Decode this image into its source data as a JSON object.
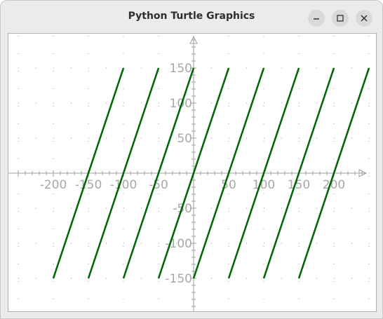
{
  "window": {
    "title": "Python Turtle Graphics",
    "buttons": [
      "minimize",
      "maximize",
      "close"
    ]
  },
  "colors": {
    "line": "#006400",
    "axis": "#a0a0a0",
    "grid": "#9a9a9a",
    "tick_label": "#a8a8a8"
  },
  "chart_data": {
    "type": "line",
    "title": "",
    "xlabel": "",
    "ylabel": "",
    "xlim": [
      -250,
      250
    ],
    "ylim": [
      -195,
      195
    ],
    "grid": true,
    "x_ticks": [
      -200,
      -150,
      -100,
      -50,
      0,
      50,
      100,
      150,
      200
    ],
    "y_ticks": [
      -150,
      -100,
      -50,
      0,
      50,
      100,
      150
    ],
    "x_tick_labels": [
      "-200",
      "-150",
      "-100",
      "-50",
      "50",
      "100",
      "150",
      "200"
    ],
    "y_tick_labels": [
      "150",
      "100",
      "50",
      "-50",
      "-100",
      "-150"
    ],
    "series": [
      {
        "x": [
          -200,
          -100
        ],
        "y": [
          -150,
          150
        ]
      },
      {
        "x": [
          -150,
          -50
        ],
        "y": [
          -150,
          150
        ]
      },
      {
        "x": [
          -100,
          0
        ],
        "y": [
          -150,
          150
        ]
      },
      {
        "x": [
          -50,
          50
        ],
        "y": [
          -150,
          150
        ]
      },
      {
        "x": [
          0,
          100
        ],
        "y": [
          -150,
          150
        ]
      },
      {
        "x": [
          50,
          150
        ],
        "y": [
          -150,
          150
        ]
      },
      {
        "x": [
          100,
          200
        ],
        "y": [
          -150,
          150
        ]
      },
      {
        "x": [
          150,
          250
        ],
        "y": [
          -150,
          150
        ]
      }
    ]
  }
}
